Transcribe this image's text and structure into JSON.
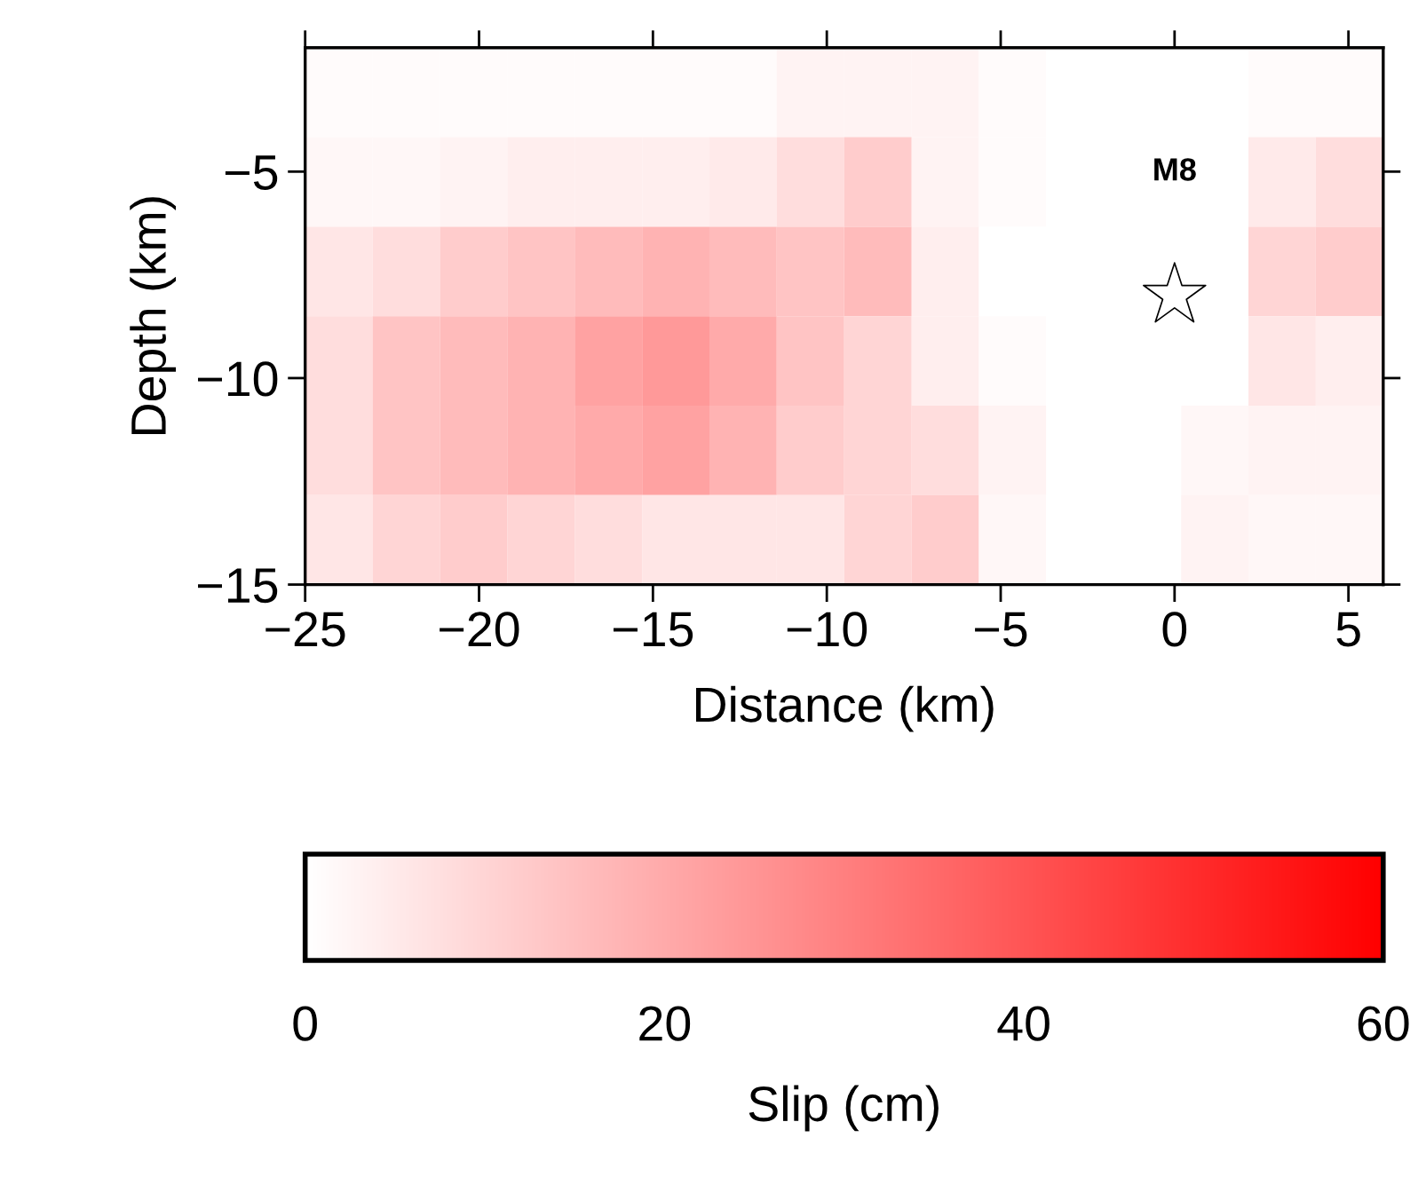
{
  "chart_data": {
    "type": "heatmap",
    "xlabel": "Distance (km)",
    "ylabel": "Depth (km)",
    "clabel": "Slip (cm)",
    "x": [
      -24.03,
      -22.09,
      -20.16,
      -18.22,
      -16.28,
      -14.34,
      -12.41,
      -10.47,
      -8.53,
      -6.59,
      -4.66,
      -2.72,
      -0.78,
      1.16,
      3.09,
      5.03
    ],
    "y": [
      -3.08,
      -5.25,
      -7.42,
      -9.58,
      -11.75,
      -13.92
    ],
    "cells": [
      [
        1,
        1,
        1,
        1,
        1,
        1,
        1,
        3,
        3,
        3,
        1,
        0,
        0,
        0,
        1,
        1
      ],
      [
        2,
        2,
        3,
        4,
        4,
        4,
        5,
        8,
        12,
        3,
        1,
        0,
        0,
        0,
        5,
        8
      ],
      [
        6,
        8,
        12,
        14,
        16,
        18,
        16,
        14,
        16,
        4,
        0,
        0,
        0,
        0,
        10,
        12
      ],
      [
        8,
        14,
        16,
        18,
        22,
        24,
        20,
        14,
        10,
        4,
        1,
        0,
        0,
        0,
        6,
        4
      ],
      [
        8,
        14,
        16,
        18,
        20,
        22,
        18,
        12,
        10,
        8,
        3,
        0,
        0,
        2,
        3,
        3
      ],
      [
        6,
        10,
        12,
        10,
        8,
        6,
        6,
        6,
        10,
        12,
        2,
        0,
        0,
        3,
        2,
        2
      ]
    ],
    "xlim": [
      -25,
      6
    ],
    "ylim": [
      -15,
      -2
    ],
    "xticks": [
      {
        "value": -25,
        "label": "−25"
      },
      {
        "value": -20,
        "label": "−20"
      },
      {
        "value": -15,
        "label": "−15"
      },
      {
        "value": -10,
        "label": "−10"
      },
      {
        "value": -5,
        "label": "−5"
      },
      0,
      5
    ],
    "yticks": [
      {
        "value": -15,
        "label": "−15"
      },
      {
        "value": -10,
        "label": "−10"
      },
      {
        "value": -5,
        "label": "−5"
      }
    ],
    "clim": [
      0,
      60
    ],
    "cticks": [
      0,
      20,
      40,
      60
    ],
    "series": [
      {
        "type": "scatter",
        "x": [
          0
        ],
        "values": [
          -8
        ],
        "marker": "star",
        "color": "#ffffff"
      }
    ],
    "annotations": [
      "M8"
    ],
    "grid": false,
    "legend": false
  }
}
